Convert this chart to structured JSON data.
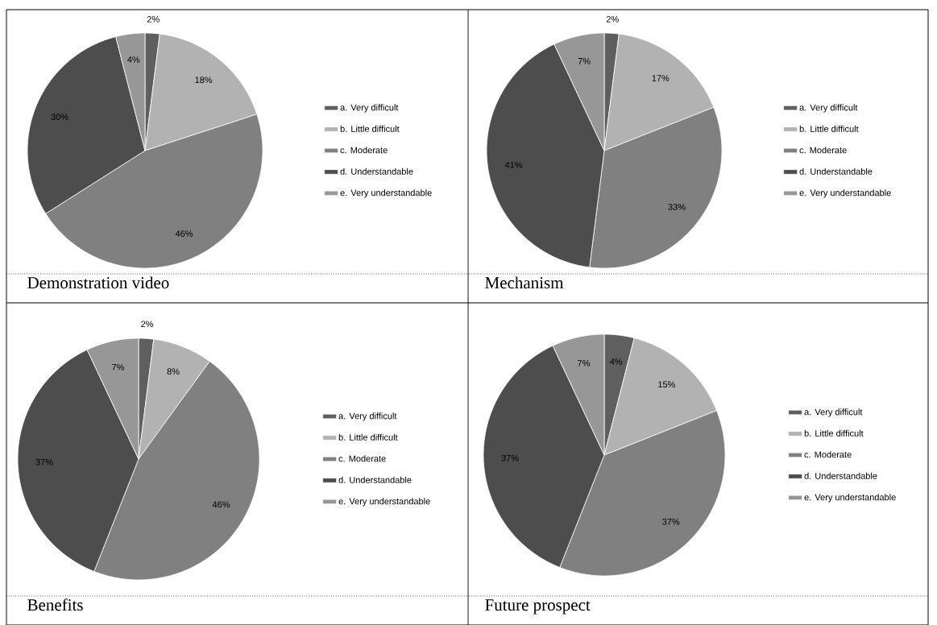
{
  "chart_data": [
    {
      "type": "pie",
      "title": "Demonstration video",
      "categories": [
        "a. Very difficult",
        "b. Little difficult",
        "c. Moderate",
        "d. Understandable",
        "e. Very understandable"
      ],
      "values": [
        2,
        18,
        46,
        30,
        4
      ],
      "value_labels": [
        "2%",
        "18%",
        "46%",
        "30%",
        "4%"
      ],
      "colors": [
        "#5f5f5f",
        "#b2b2b2",
        "#808080",
        "#4d4d4d",
        "#979797"
      ],
      "legend": "right"
    },
    {
      "type": "pie",
      "title": "Mechanism",
      "categories": [
        "a. Very difficult",
        "b. Little difficult",
        "c. Moderate",
        "d. Understandable",
        "e. Very understandable"
      ],
      "values": [
        2,
        17,
        33,
        41,
        7
      ],
      "value_labels": [
        "2%",
        "17%",
        "33%",
        "41%",
        "7%"
      ],
      "colors": [
        "#5f5f5f",
        "#b2b2b2",
        "#808080",
        "#4d4d4d",
        "#979797"
      ],
      "legend": "right"
    },
    {
      "type": "pie",
      "title": "Benefits",
      "categories": [
        "a. Very difficult",
        "b. Little difficult",
        "c. Moderate",
        "d. Understandable",
        "e. Very understandable"
      ],
      "values": [
        2,
        8,
        46,
        37,
        7
      ],
      "value_labels": [
        "2%",
        "8%",
        "46%",
        "37%",
        "7%"
      ],
      "colors": [
        "#5f5f5f",
        "#b2b2b2",
        "#808080",
        "#4d4d4d",
        "#979797"
      ],
      "legend": "right"
    },
    {
      "type": "pie",
      "title": "Future prospect",
      "categories": [
        "a. Very difficult",
        "b. Little difficult",
        "c. Moderate",
        "d. Understandable",
        "e. Very understandable"
      ],
      "values": [
        4,
        15,
        37,
        37,
        7
      ],
      "value_labels": [
        "4%",
        "15%",
        "37%",
        "37%",
        "7%"
      ],
      "colors": [
        "#5f5f5f",
        "#b2b2b2",
        "#808080",
        "#4d4d4d",
        "#979797"
      ],
      "legend": "right"
    }
  ]
}
